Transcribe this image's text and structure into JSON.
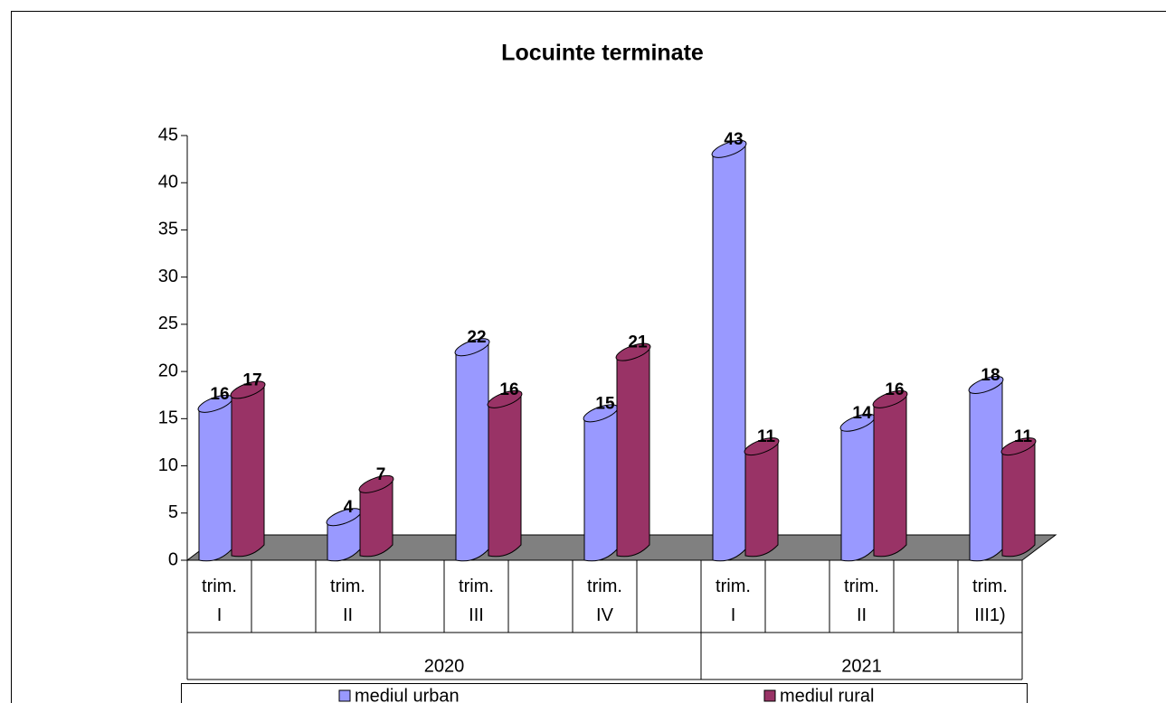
{
  "chart_data": {
    "type": "bar3d",
    "title": "Locuinte terminate",
    "category_groups": [
      {
        "name": "2020",
        "categories": [
          "trim. I",
          "trim. II",
          "trim. III",
          "trim. IV"
        ]
      },
      {
        "name": "2021",
        "categories": [
          "trim. I",
          "trim. II",
          "trim. III1)"
        ]
      }
    ],
    "series": [
      {
        "name": "mediul urban",
        "color": "#9999ff",
        "values": [
          16,
          4,
          22,
          15,
          43,
          14,
          18
        ]
      },
      {
        "name": "mediul rural",
        "color": "#993366",
        "values": [
          17,
          7,
          16,
          21,
          11,
          16,
          11
        ]
      }
    ],
    "ylim": [
      0,
      45
    ],
    "yticks": [
      0,
      5,
      10,
      15,
      20,
      25,
      30,
      35,
      40,
      45
    ],
    "legend": "bottom",
    "floor_color": "#808080"
  }
}
